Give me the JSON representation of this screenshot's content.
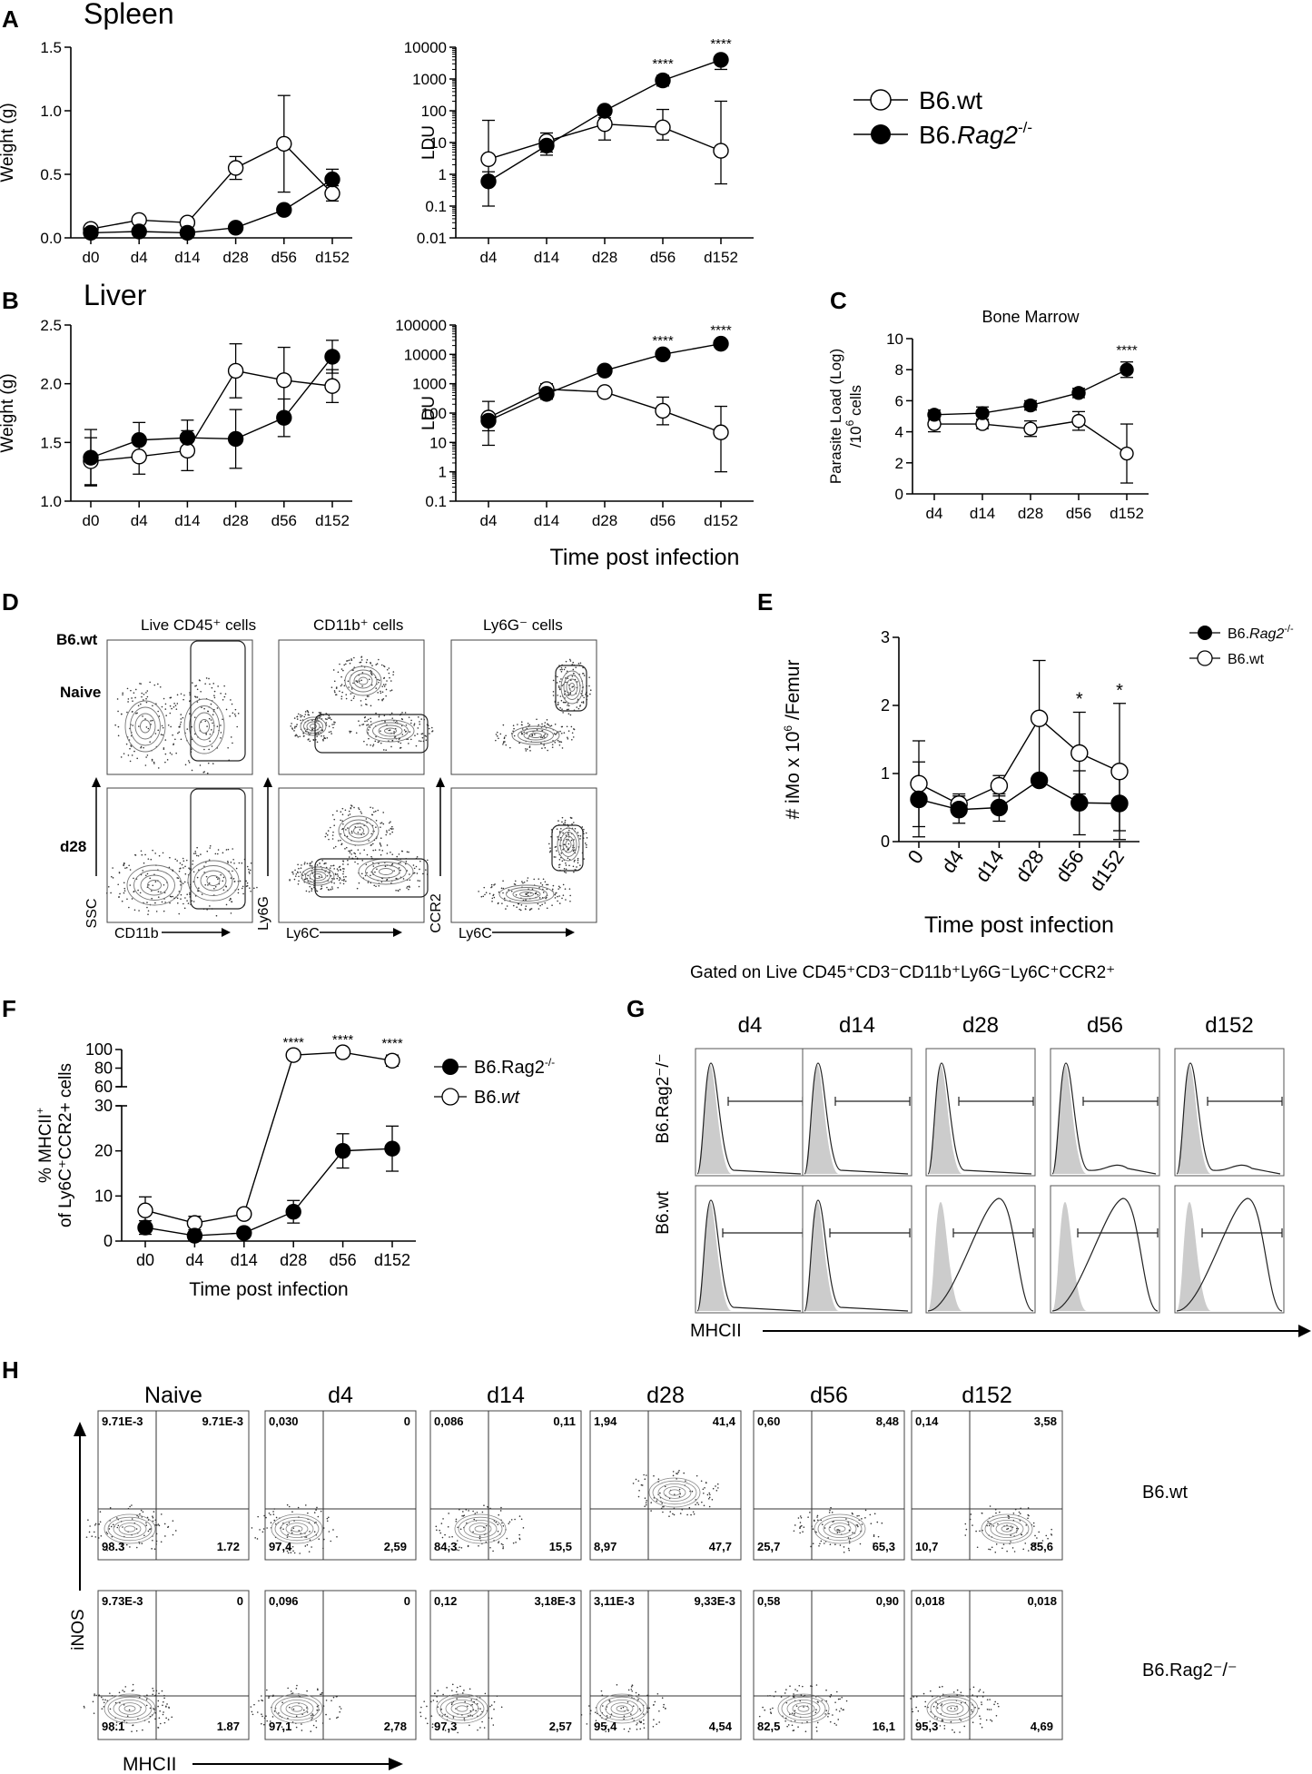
{
  "legend_main": {
    "wt": "B6.wt",
    "rag_base": "B6.",
    "rag_italic": "Rag2",
    "rag_sup": "-/-"
  },
  "panels": {
    "A": "A",
    "B": "B",
    "C": "C",
    "D": "D",
    "E": "E",
    "F": "F",
    "G": "G",
    "H": "H"
  },
  "section_titles": {
    "spleen": "Spleen",
    "liver": "Liver"
  },
  "shared_xlabel": "Time post infection",
  "stars": {
    "four": "****",
    "one": "*"
  },
  "panelD": {
    "col_titles": [
      "Live CD45⁺ cells",
      "CD11b⁺ cells",
      "Ly6G⁻ cells"
    ],
    "row_labels": [
      "B6.wt",
      "Naive",
      "d28"
    ],
    "axis_y": [
      "SSC",
      "Ly6G",
      "CCR2"
    ],
    "axis_x": [
      "CD11b",
      "Ly6C",
      "Ly6C"
    ]
  },
  "panelG": {
    "title": "Gated on Live CD45⁺CD3⁻CD11b⁺Ly6G⁻Ly6C⁺CCR2⁺",
    "cols": [
      "d4",
      "d14",
      "d28",
      "d56",
      "d152"
    ],
    "row1": "B6.Rag2⁻/⁻",
    "row2": "B6.wt",
    "xlabel": "MHCII"
  },
  "panelH": {
    "cols": [
      "Naive",
      "d4",
      "d14",
      "d28",
      "d56",
      "d152"
    ],
    "row_wt": "B6.wt",
    "row_rag": "B6.Rag2⁻/⁻",
    "ylabel": "iNOS",
    "xlabel": "MHCII",
    "wt": [
      [
        "9.71E-3",
        "9.71E-3",
        "98.3",
        "1.72"
      ],
      [
        "0,030",
        "0",
        "97,4",
        "2,59"
      ],
      [
        "0,086",
        "0,11",
        "84,3",
        "15,5"
      ],
      [
        "1,94",
        "41,4",
        "8,97",
        "47,7"
      ],
      [
        "0,60",
        "8,48",
        "25,7",
        "65,3"
      ],
      [
        "0,14",
        "3,58",
        "10,7",
        "85,6"
      ]
    ],
    "rag": [
      [
        "9.73E-3",
        "0",
        "98.1",
        "1.87"
      ],
      [
        "0,096",
        "0",
        "97,1",
        "2,78"
      ],
      [
        "0,12",
        "3,18E-3",
        "97,3",
        "2,57"
      ],
      [
        "3,11E-3",
        "9,33E-3",
        "95,4",
        "4,54"
      ],
      [
        "0,58",
        "0,90",
        "82,5",
        "16,1"
      ],
      [
        "0,018",
        "0,018",
        "95,3",
        "4,69"
      ]
    ]
  },
  "chart_data": [
    {
      "id": "spleen_weight",
      "type": "line",
      "title": "",
      "ylabel": "Weight (g)",
      "xlabel": "",
      "categories": [
        "d0",
        "d4",
        "d14",
        "d28",
        "d56",
        "d152"
      ],
      "ylim": [
        0,
        1.5
      ],
      "yticks": [
        "0.0",
        "0.5",
        "1.0",
        "1.5"
      ],
      "ytick_values": [
        0,
        0.5,
        1.0,
        1.5
      ],
      "scale": "linear",
      "series": [
        {
          "name": "B6.wt",
          "values": [
            0.07,
            0.14,
            0.12,
            0.55,
            0.74,
            0.35
          ],
          "err": [
            0.02,
            0.03,
            0.03,
            0.09,
            0.38,
            0.06
          ]
        },
        {
          "name": "B6.Rag2-/-",
          "values": [
            0.04,
            0.05,
            0.04,
            0.08,
            0.22,
            0.46
          ],
          "err": [
            0.01,
            0.01,
            0.01,
            0.02,
            0.03,
            0.08
          ]
        }
      ],
      "stars": []
    },
    {
      "id": "spleen_ldu",
      "type": "line",
      "title": "",
      "ylabel": "LDU",
      "xlabel": "",
      "categories": [
        "d4",
        "d14",
        "d28",
        "d56",
        "d152"
      ],
      "ylim": [
        0.01,
        10000
      ],
      "yticks": [
        "0.01",
        "0.1",
        "1",
        "10",
        "100",
        "1000",
        "10000"
      ],
      "ytick_values": [
        0.01,
        0.1,
        1,
        10,
        100,
        1000,
        10000
      ],
      "scale": "log",
      "series": [
        {
          "name": "B6.wt",
          "values": [
            3,
            11,
            38,
            30,
            5.5
          ],
          "errlo": [
            0.5,
            5,
            12,
            12,
            0.5
          ],
          "errhi": [
            50,
            20,
            80,
            110,
            200
          ]
        },
        {
          "name": "B6.Rag2-/-",
          "values": [
            0.6,
            8,
            100,
            900,
            4000
          ],
          "errlo": [
            0.1,
            4,
            60,
            600,
            2000
          ],
          "errhi": [
            1.2,
            12,
            130,
            1300,
            5500
          ]
        }
      ],
      "stars": [
        {
          "index": 3,
          "label": "****"
        },
        {
          "index": 4,
          "label": "****"
        }
      ]
    },
    {
      "id": "liver_weight",
      "type": "line",
      "title": "",
      "ylabel": "Weight (g)",
      "xlabel": "",
      "categories": [
        "d0",
        "d4",
        "d14",
        "d28",
        "d56",
        "d152"
      ],
      "ylim": [
        1.0,
        2.5
      ],
      "yticks": [
        "1.0",
        "1.5",
        "2.0",
        "2.5"
      ],
      "ytick_values": [
        1.0,
        1.5,
        2.0,
        2.5
      ],
      "scale": "linear",
      "series": [
        {
          "name": "B6.wt",
          "values": [
            1.34,
            1.38,
            1.43,
            2.11,
            2.03,
            1.98
          ],
          "err": [
            0.2,
            0.15,
            0.17,
            0.23,
            0.28,
            0.14
          ]
        },
        {
          "name": "B6.Rag2-/-",
          "values": [
            1.37,
            1.52,
            1.54,
            1.53,
            1.71,
            2.23
          ],
          "err": [
            0.24,
            0.15,
            0.15,
            0.25,
            0.16,
            0.14
          ]
        }
      ],
      "stars": []
    },
    {
      "id": "liver_ldu",
      "type": "line",
      "title": "",
      "ylabel": "LDU",
      "xlabel": "Time post infection",
      "categories": [
        "d4",
        "d14",
        "d28",
        "d56",
        "d152"
      ],
      "ylim": [
        0.1,
        100000
      ],
      "yticks": [
        "0.1",
        "1",
        "10",
        "100",
        "1000",
        "10000",
        "100000"
      ],
      "ytick_values": [
        0.1,
        1,
        10,
        100,
        1000,
        10000,
        100000
      ],
      "scale": "log",
      "series": [
        {
          "name": "B6.wt",
          "values": [
            70,
            650,
            520,
            120,
            22
          ],
          "errlo": [
            8,
            300,
            400,
            40,
            1
          ],
          "errhi": [
            250,
            1000,
            700,
            350,
            170
          ]
        },
        {
          "name": "B6.Rag2-/-",
          "values": [
            55,
            450,
            2800,
            10000,
            23000
          ],
          "errlo": [
            25,
            300,
            2200,
            8500,
            19000
          ],
          "errhi": [
            90,
            600,
            3500,
            12000,
            27000
          ]
        }
      ],
      "stars": [
        {
          "index": 3,
          "label": "****"
        },
        {
          "index": 4,
          "label": "****"
        }
      ]
    },
    {
      "id": "bone_marrow",
      "type": "line",
      "title": "Bone Marrow",
      "ylabel": "Parasite Load (Log) /10^6 cells",
      "xlabel": "",
      "categories": [
        "d4",
        "d14",
        "d28",
        "d56",
        "d152"
      ],
      "ylim": [
        0,
        10
      ],
      "yticks": [
        "0",
        "2",
        "4",
        "6",
        "8",
        "10"
      ],
      "ytick_values": [
        0,
        2,
        4,
        6,
        8,
        10
      ],
      "scale": "linear",
      "series": [
        {
          "name": "B6.wt",
          "values": [
            4.5,
            4.5,
            4.2,
            4.7,
            2.6
          ],
          "err": [
            0.5,
            0.3,
            0.5,
            0.6,
            1.9
          ]
        },
        {
          "name": "B6.Rag2-/-",
          "values": [
            5.1,
            5.2,
            5.7,
            6.5,
            8.0
          ],
          "err": [
            0.3,
            0.4,
            0.3,
            0.3,
            0.5
          ]
        }
      ],
      "stars": [
        {
          "index": 4,
          "label": "****"
        }
      ]
    },
    {
      "id": "imo_femur",
      "type": "line",
      "title": "",
      "ylabel": "# iMo x 10^6 /Femur",
      "xlabel": "Time post infection",
      "categories": [
        "0",
        "d4",
        "d14",
        "d28",
        "d56",
        "d152"
      ],
      "ylim": [
        0,
        3
      ],
      "yticks": [
        "0",
        "1",
        "2",
        "3"
      ],
      "ytick_values": [
        0,
        1,
        2,
        3
      ],
      "scale": "linear",
      "series": [
        {
          "name": "B6.wt",
          "values": [
            0.85,
            0.55,
            0.82,
            1.81,
            1.3,
            1.03
          ],
          "err": [
            0.63,
            0.15,
            0.15,
            0.85,
            0.6,
            1.0
          ]
        },
        {
          "name": "B6.Rag2-/-",
          "values": [
            0.62,
            0.47,
            0.5,
            0.9,
            0.57,
            0.56
          ],
          "err": [
            0.55,
            0.2,
            0.2,
            0.0,
            0.47,
            0.4
          ]
        }
      ],
      "stars": [
        {
          "index": 4,
          "label": "*"
        },
        {
          "index": 5,
          "label": "*"
        }
      ]
    },
    {
      "id": "mhcii_percent",
      "type": "line",
      "title": "",
      "ylabel": "% MHCII+ of Ly6C+CCR2+ cells",
      "xlabel": "Time post infection",
      "categories": [
        "d0",
        "d4",
        "d14",
        "d28",
        "d56",
        "d152"
      ],
      "ylim": [
        0,
        100
      ],
      "axis_break": [
        30,
        60
      ],
      "yticks": [
        "0",
        "10",
        "20",
        "30",
        "60",
        "80",
        "100"
      ],
      "ytick_values": [
        0,
        10,
        20,
        30,
        60,
        80,
        100
      ],
      "scale": "broken",
      "series": [
        {
          "name": "B6.wt",
          "values": [
            6.8,
            4.0,
            6.0,
            94,
            97,
            88
          ],
          "err": [
            3,
            1.5,
            0.5,
            1,
            1,
            6
          ]
        },
        {
          "name": "B6.Rag2-/-",
          "values": [
            3.0,
            1.2,
            1.8,
            6.5,
            20,
            20.5
          ],
          "err": [
            1.5,
            0.5,
            0.5,
            2.5,
            3.8,
            5
          ]
        }
      ],
      "stars": [
        {
          "index": 3,
          "label": "****"
        },
        {
          "index": 4,
          "label": "****"
        },
        {
          "index": 5,
          "label": "****"
        }
      ],
      "legend": [
        "B6.Rag2",
        "B6.wt"
      ]
    }
  ]
}
